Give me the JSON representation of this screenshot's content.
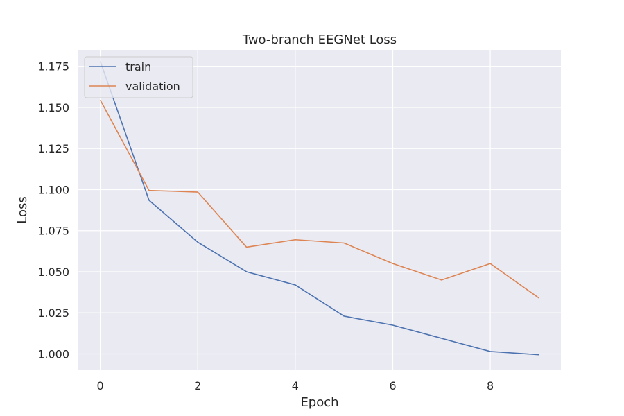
{
  "chart_data": {
    "type": "line",
    "title": "Two-branch EEGNet Loss",
    "xlabel": "Epoch",
    "ylabel": "Loss",
    "x": [
      0,
      1,
      2,
      3,
      4,
      5,
      6,
      7,
      8,
      9
    ],
    "xlim": [
      -0.45,
      9.45
    ],
    "ylim": [
      0.9905,
      1.185
    ],
    "xticks": [
      0,
      2,
      4,
      6,
      8
    ],
    "xtick_labels": [
      "0",
      "2",
      "4",
      "6",
      "8"
    ],
    "yticks": [
      1.0,
      1.025,
      1.05,
      1.075,
      1.1,
      1.125,
      1.15,
      1.175
    ],
    "ytick_labels": [
      "1.000",
      "1.025",
      "1.050",
      "1.075",
      "1.100",
      "1.125",
      "1.150",
      "1.175"
    ],
    "grid": true,
    "legend_position": "upper-left",
    "series": [
      {
        "name": "train",
        "color": "#4c72b0",
        "values": [
          1.178,
          1.0935,
          1.068,
          1.05,
          1.042,
          1.023,
          1.0175,
          1.0095,
          1.0015,
          0.9995
        ]
      },
      {
        "name": "validation",
        "color": "#dd8452",
        "values": [
          1.1545,
          1.0995,
          1.0985,
          1.065,
          1.0695,
          1.0675,
          1.055,
          1.045,
          1.055,
          1.034
        ]
      }
    ]
  },
  "colors": {
    "background": "#eaeaf2",
    "grid": "#ffffff",
    "text": "#262626"
  }
}
